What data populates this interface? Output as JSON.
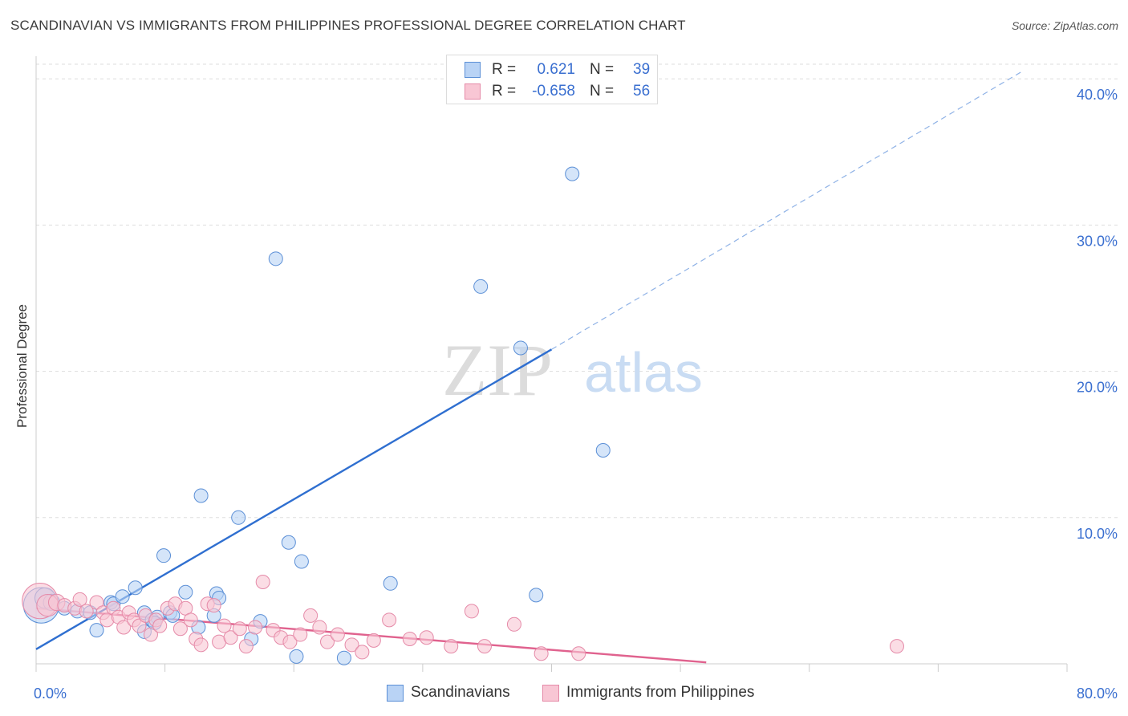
{
  "title": "SCANDINAVIAN VS IMMIGRANTS FROM PHILIPPINES PROFESSIONAL DEGREE CORRELATION CHART",
  "source": "Source: ZipAtlas.com",
  "watermark": {
    "zip": "ZIP",
    "atlas": "atlas"
  },
  "legend": {
    "rows": [
      {
        "r_label": "R =",
        "r_value": "0.621",
        "n_label": "N =",
        "n_value": "39"
      },
      {
        "r_label": "R =",
        "r_value": "-0.658",
        "n_label": "N =",
        "n_value": "56"
      }
    ]
  },
  "bottom_legend": [
    "Scandinavians",
    "Immigrants from Philippines"
  ],
  "colors": {
    "blue_fill": "#b9d3f5",
    "blue_stroke": "#5b8fd6",
    "blue_line": "#2f6fd0",
    "pink_fill": "#f8c6d4",
    "pink_stroke": "#e58aa8",
    "pink_line": "#e0628e",
    "tick_text": "#3a6fd0",
    "grid": "#dddddd"
  },
  "chart_data": {
    "type": "scatter",
    "title": "SCANDINAVIAN VS IMMIGRANTS FROM PHILIPPINES PROFESSIONAL DEGREE CORRELATION CHART",
    "xlabel": "",
    "ylabel": "Professional Degree",
    "xlim": [
      0,
      80
    ],
    "ylim": [
      0,
      41
    ],
    "x_tick_labels": [
      "0.0%",
      "80.0%"
    ],
    "y_ticks": [
      10,
      20,
      30,
      40
    ],
    "y_tick_labels": [
      "10.0%",
      "20.0%",
      "30.0%",
      "40.0%"
    ],
    "series": [
      {
        "name": "Scandinavians",
        "color": "blue",
        "points": [
          [
            0.4,
            4.0,
            2.6
          ],
          [
            0.7,
            4.5,
            1.5
          ],
          [
            1.2,
            4.2,
            1.2
          ],
          [
            2.2,
            3.8,
            1.0
          ],
          [
            3.2,
            3.6,
            1.0
          ],
          [
            4.2,
            3.5,
            1.0
          ],
          [
            4.7,
            2.3,
            1.0
          ],
          [
            5.8,
            4.2,
            1.0
          ],
          [
            6.0,
            4.1,
            1.0
          ],
          [
            6.7,
            4.6,
            1.0
          ],
          [
            7.7,
            5.2,
            1.0
          ],
          [
            8.4,
            3.5,
            1.0
          ],
          [
            9.0,
            3.0,
            1.0
          ],
          [
            9.4,
            3.2,
            1.0
          ],
          [
            10.4,
            3.5,
            1.0
          ],
          [
            10.6,
            3.3,
            1.0
          ],
          [
            8.4,
            2.2,
            1.0
          ],
          [
            9.2,
            2.8,
            1.0
          ],
          [
            11.6,
            4.9,
            1.0
          ],
          [
            9.9,
            7.4,
            1.0
          ],
          [
            12.8,
            11.5,
            1.0
          ],
          [
            12.6,
            2.5,
            1.0
          ],
          [
            14.0,
            4.8,
            1.0
          ],
          [
            13.8,
            3.3,
            1.0
          ],
          [
            15.7,
            10.0,
            1.0
          ],
          [
            16.7,
            1.7,
            1.0
          ],
          [
            17.4,
            2.9,
            1.0
          ],
          [
            18.6,
            27.7,
            1.0
          ],
          [
            19.6,
            8.3,
            1.0
          ],
          [
            20.6,
            7.0,
            1.0
          ],
          [
            20.2,
            0.5,
            1.0
          ],
          [
            23.9,
            0.4,
            1.0
          ],
          [
            27.5,
            5.5,
            1.0
          ],
          [
            34.5,
            25.8,
            1.0
          ],
          [
            37.6,
            21.6,
            1.0
          ],
          [
            38.8,
            4.7,
            1.0
          ],
          [
            41.6,
            33.5,
            1.0
          ],
          [
            44.0,
            14.6,
            1.0
          ],
          [
            14.2,
            4.5,
            1.0
          ]
        ]
      },
      {
        "name": "Immigrants from Philippines",
        "color": "pink",
        "points": [
          [
            0.3,
            4.3,
            2.6
          ],
          [
            0.9,
            4.0,
            1.6
          ],
          [
            1.6,
            4.2,
            1.2
          ],
          [
            2.2,
            4.0,
            1.0
          ],
          [
            3.0,
            3.8,
            1.0
          ],
          [
            3.4,
            4.4,
            1.0
          ],
          [
            3.9,
            3.6,
            1.0
          ],
          [
            4.7,
            4.2,
            1.0
          ],
          [
            5.2,
            3.5,
            1.0
          ],
          [
            5.5,
            3.0,
            1.0
          ],
          [
            6.0,
            3.8,
            1.0
          ],
          [
            6.4,
            3.2,
            1.0
          ],
          [
            6.8,
            2.5,
            1.0
          ],
          [
            7.2,
            3.5,
            1.0
          ],
          [
            7.6,
            3.0,
            1.0
          ],
          [
            8.0,
            2.6,
            1.0
          ],
          [
            8.5,
            3.3,
            1.0
          ],
          [
            8.9,
            2.0,
            1.0
          ],
          [
            9.3,
            3.0,
            1.0
          ],
          [
            9.6,
            2.6,
            1.0
          ],
          [
            10.2,
            3.8,
            1.0
          ],
          [
            10.8,
            4.1,
            1.0
          ],
          [
            11.2,
            2.4,
            1.0
          ],
          [
            11.6,
            3.8,
            1.0
          ],
          [
            12.0,
            3.0,
            1.0
          ],
          [
            12.4,
            1.7,
            1.0
          ],
          [
            12.8,
            1.3,
            1.0
          ],
          [
            13.3,
            4.1,
            1.0
          ],
          [
            13.8,
            4.0,
            1.0
          ],
          [
            14.2,
            1.5,
            1.0
          ],
          [
            14.6,
            2.6,
            1.0
          ],
          [
            15.1,
            1.8,
            1.0
          ],
          [
            15.8,
            2.4,
            1.0
          ],
          [
            16.3,
            1.2,
            1.0
          ],
          [
            17.0,
            2.5,
            1.0
          ],
          [
            17.6,
            5.6,
            1.0
          ],
          [
            18.4,
            2.3,
            1.0
          ],
          [
            19.0,
            1.8,
            1.0
          ],
          [
            19.7,
            1.5,
            1.0
          ],
          [
            20.5,
            2.0,
            1.0
          ],
          [
            21.3,
            3.3,
            1.0
          ],
          [
            22.0,
            2.5,
            1.0
          ],
          [
            22.6,
            1.5,
            1.0
          ],
          [
            23.4,
            2.0,
            1.0
          ],
          [
            24.5,
            1.3,
            1.0
          ],
          [
            25.3,
            0.8,
            1.0
          ],
          [
            26.2,
            1.6,
            1.0
          ],
          [
            27.4,
            3.0,
            1.0
          ],
          [
            29.0,
            1.7,
            1.0
          ],
          [
            30.3,
            1.8,
            1.0
          ],
          [
            32.2,
            1.2,
            1.0
          ],
          [
            33.8,
            3.6,
            1.0
          ],
          [
            34.8,
            1.2,
            1.0
          ],
          [
            37.1,
            2.7,
            1.0
          ],
          [
            39.2,
            0.7,
            1.0
          ],
          [
            42.1,
            0.7,
            1.0
          ],
          [
            66.8,
            1.2,
            1.0
          ]
        ]
      }
    ],
    "trend_lines": [
      {
        "series": "Scandinavians",
        "x1": 0,
        "y1": 1.0,
        "x2": 40,
        "y2": 21.5,
        "dashed_to_x": 76.5,
        "dashed_to_y": 40.5
      },
      {
        "series": "Immigrants from Philippines",
        "x1": 0,
        "y1": 3.8,
        "x2": 52,
        "y2": 0.1
      }
    ]
  }
}
